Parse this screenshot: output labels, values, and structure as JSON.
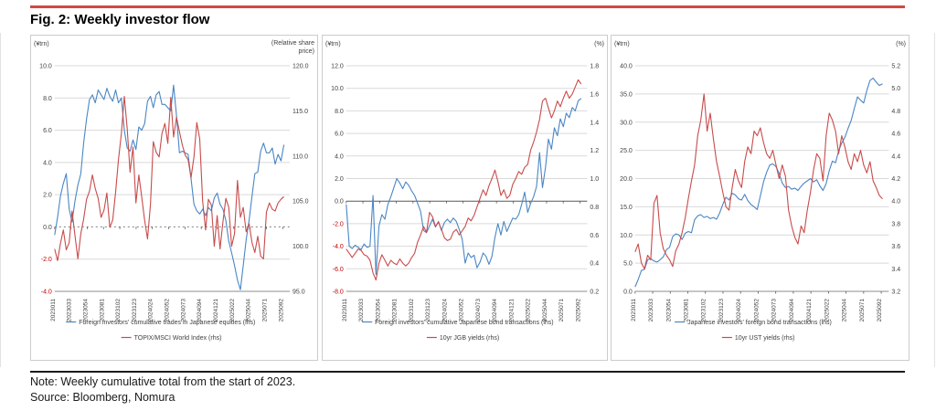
{
  "figure": {
    "title": "Fig. 2: Weekly investor flow",
    "note": "Note: Weekly cumulative total from the start of 2023.",
    "source": "Source: Bloomberg, Nomura"
  },
  "colors": {
    "accent_rule": "#cf4a42",
    "blue": "#4a86c4",
    "red": "#c94b4b",
    "grid": "#d9d9d9",
    "axis": "#8c8c8c",
    "zero": "#595959",
    "tick_text": "#3f3f3f",
    "neg_tick_text": "#c00000"
  },
  "chart_data": [
    {
      "type": "line",
      "left_axis": {
        "unit_lines": [
          "(¥trn)"
        ],
        "min": -4,
        "max": 10,
        "step": 2
      },
      "right_axis": {
        "unit_lines": [
          "(Relative share",
          "price)"
        ],
        "min": 95,
        "max": 120,
        "step": 5
      },
      "zero_line": "dashed",
      "tick_axis": "zero",
      "x_labels": [
        "2023011",
        "2023033",
        "2023054",
        "2023081",
        "2023102",
        "2023123",
        "2024024",
        "2024052",
        "2024073",
        "2024094",
        "2024121",
        "2025022",
        "2025044",
        "2025071",
        "2025092"
      ],
      "series": [
        {
          "name": "Foreign investors' cumulative trades in Japanese equities (lhs)",
          "axis": "left",
          "color": "blue",
          "values": [
            -0.5,
            0.6,
            1.9,
            2.7,
            3.3,
            1.1,
            0.3,
            1.6,
            2.6,
            3.3,
            5.2,
            6.7,
            7.9,
            8.2,
            7.7,
            8.5,
            8.2,
            7.9,
            8.6,
            8.1,
            7.8,
            8.5,
            7.7,
            8.0,
            6.0,
            4.9,
            4.7,
            5.4,
            4.8,
            6.2,
            6.0,
            6.4,
            7.8,
            8.1,
            7.4,
            8.2,
            8.4,
            7.6,
            7.6,
            7.4,
            7.2,
            8.8,
            6.9,
            4.6,
            4.7,
            4.6,
            4.5,
            3.0,
            1.4,
            1.0,
            0.8,
            1.1,
            0.7,
            1.2,
            1.0,
            1.8,
            2.1,
            1.4,
            1.1,
            0.4,
            -0.9,
            -1.6,
            -2.4,
            -3.3,
            -3.9,
            -2.4,
            -0.8,
            0.4,
            1.9,
            3.3,
            3.4,
            4.7,
            5.2,
            4.6,
            4.6,
            4.9,
            3.9,
            4.5,
            4.1,
            5.1
          ]
        },
        {
          "name": "TOPIX/MSCI World Index (rhs)",
          "axis": "right",
          "color": "red",
          "values": [
            99.7,
            98.4,
            100.3,
            101.8,
            99.6,
            100.4,
            103.9,
            101.2,
            98.6,
            101.4,
            103.0,
            105.2,
            106.1,
            107.9,
            106.4,
            105.3,
            103.2,
            104.0,
            105.9,
            102.1,
            102.9,
            106.0,
            109.6,
            112.5,
            116.6,
            113.0,
            108.2,
            111.0,
            104.8,
            107.9,
            105.5,
            102.9,
            100.8,
            104.6,
            111.6,
            110.4,
            109.9,
            112.5,
            113.6,
            111.4,
            116.5,
            112.1,
            114.3,
            112.7,
            111.2,
            110.1,
            109.6,
            107.6,
            109.9,
            113.7,
            111.9,
            105.0,
            101.8,
            105.2,
            104.6,
            100.0,
            103.4,
            99.7,
            102.7,
            105.3,
            104.3,
            100.0,
            101.4,
            107.3,
            103.2,
            104.3,
            101.6,
            102.5,
            100.4,
            99.3,
            101.1,
            98.9,
            98.6,
            103.8,
            104.8,
            104.1,
            103.9,
            104.8,
            105.2,
            105.5
          ]
        }
      ]
    },
    {
      "type": "line",
      "left_axis": {
        "unit_lines": [
          "(¥trn)"
        ],
        "min": -8,
        "max": 12,
        "step": 2
      },
      "right_axis": {
        "unit_lines": [
          "(%)"
        ],
        "min": 0.2,
        "max": 1.8,
        "step": 0.2
      },
      "zero_line": "solid",
      "tick_axis": "zero",
      "x_labels": [
        "2023011",
        "2023033",
        "2023054",
        "2023081",
        "2023102",
        "2023123",
        "2024024",
        "2024052",
        "2024073",
        "2024094",
        "2024121",
        "2025022",
        "2025044",
        "2025071",
        "2025092"
      ],
      "series": [
        {
          "name": "Foreign investors' cumulative Japanese bond transactions (lhs)",
          "axis": "left",
          "color": "blue",
          "values": [
            -0.3,
            -4.0,
            -4.2,
            -3.9,
            -4.1,
            -4.3,
            -3.8,
            -4.1,
            -4.0,
            0.5,
            -6.5,
            -2.2,
            -1.2,
            -1.6,
            -0.3,
            0.4,
            1.2,
            2.0,
            1.6,
            1.1,
            1.7,
            1.4,
            0.9,
            0.5,
            -0.2,
            -0.9,
            -2.6,
            -2.8,
            -2.2,
            -1.6,
            -2.3,
            -1.8,
            -2.6,
            -1.9,
            -1.6,
            -1.9,
            -1.5,
            -1.8,
            -2.5,
            -3.4,
            -5.5,
            -4.6,
            -5.0,
            -4.8,
            -5.9,
            -5.4,
            -4.6,
            -4.9,
            -5.6,
            -4.9,
            -3.2,
            -2.0,
            -3.0,
            -1.8,
            -2.7,
            -2.1,
            -1.5,
            -1.6,
            -1.2,
            -0.3,
            0.8,
            -1.0,
            -0.2,
            0.4,
            1.3,
            4.3,
            1.2,
            3.0,
            5.5,
            4.6,
            6.5,
            5.8,
            7.3,
            6.6,
            7.8,
            7.4,
            8.3,
            8.0,
            8.9,
            9.1
          ]
        },
        {
          "name": "10yr JGB yields (rhs)",
          "axis": "right",
          "color": "red",
          "values": [
            0.5,
            0.47,
            0.44,
            0.47,
            0.5,
            0.49,
            0.46,
            0.45,
            0.42,
            0.33,
            0.28,
            0.4,
            0.46,
            0.42,
            0.38,
            0.42,
            0.4,
            0.39,
            0.43,
            0.4,
            0.38,
            0.4,
            0.44,
            0.47,
            0.55,
            0.6,
            0.66,
            0.62,
            0.76,
            0.73,
            0.66,
            0.69,
            0.64,
            0.58,
            0.56,
            0.57,
            0.62,
            0.64,
            0.6,
            0.63,
            0.66,
            0.72,
            0.7,
            0.74,
            0.8,
            0.86,
            0.92,
            0.88,
            0.95,
            1.0,
            1.06,
            0.98,
            0.88,
            0.92,
            0.86,
            0.88,
            0.96,
            1.0,
            1.05,
            1.03,
            1.08,
            1.1,
            1.2,
            1.26,
            1.33,
            1.42,
            1.55,
            1.57,
            1.5,
            1.43,
            1.48,
            1.55,
            1.51,
            1.57,
            1.62,
            1.57,
            1.6,
            1.65,
            1.7,
            1.67
          ]
        }
      ]
    },
    {
      "type": "line",
      "left_axis": {
        "unit_lines": [
          "(¥trn)"
        ],
        "min": 0,
        "max": 40,
        "step": 5
      },
      "right_axis": {
        "unit_lines": [
          "(%)"
        ],
        "min": 3.2,
        "max": 5.2,
        "step": 0.2
      },
      "zero_line": "none",
      "tick_axis": "bottom",
      "x_labels": [
        "2023011",
        "2023033",
        "2023054",
        "2023081",
        "2023102",
        "2023123",
        "2024024",
        "2024052",
        "2024073",
        "2024094",
        "2024121",
        "2025022",
        "2025044",
        "2025071",
        "2025092"
      ],
      "series": [
        {
          "name": "Japanese investors' foreign bond transactions (lhs)",
          "axis": "left",
          "color": "blue",
          "values": [
            0.8,
            2.1,
            3.7,
            3.9,
            5.6,
            5.8,
            5.4,
            5.2,
            5.6,
            6.1,
            7.4,
            7.8,
            9.7,
            10.2,
            10.0,
            9.2,
            10.3,
            10.6,
            10.4,
            12.7,
            13.4,
            13.6,
            13.1,
            13.3,
            12.9,
            13.1,
            12.8,
            13.9,
            15.4,
            16.7,
            16.2,
            17.4,
            17.1,
            16.4,
            16.2,
            17.2,
            16.1,
            15.4,
            15.0,
            14.5,
            16.9,
            19.4,
            21.1,
            22.4,
            22.6,
            22.1,
            20.9,
            19.2,
            18.4,
            18.6,
            18.1,
            18.3,
            17.9,
            18.6,
            19.2,
            19.6,
            20.0,
            19.4,
            19.8,
            18.7,
            17.9,
            19.1,
            21.4,
            23.1,
            22.8,
            24.9,
            26.3,
            27.3,
            28.9,
            30.3,
            32.4,
            34.5,
            33.9,
            33.4,
            35.6,
            37.4,
            37.8,
            37.1,
            36.5,
            36.8
          ]
        },
        {
          "name": "10yr UST yields (rhs)",
          "axis": "right",
          "color": "red",
          "values": [
            3.55,
            3.62,
            3.45,
            3.4,
            3.52,
            3.48,
            3.98,
            4.05,
            3.72,
            3.58,
            3.52,
            3.48,
            3.42,
            3.56,
            3.62,
            3.72,
            3.85,
            4.02,
            4.18,
            4.32,
            4.58,
            4.72,
            4.95,
            4.62,
            4.78,
            4.55,
            4.35,
            4.22,
            4.08,
            3.95,
            3.92,
            4.12,
            4.28,
            4.18,
            4.12,
            4.35,
            4.48,
            4.42,
            4.62,
            4.58,
            4.65,
            4.52,
            4.42,
            4.38,
            4.45,
            4.32,
            4.2,
            4.32,
            4.22,
            3.92,
            3.78,
            3.68,
            3.62,
            3.78,
            3.72,
            3.92,
            4.08,
            4.28,
            4.42,
            4.38,
            4.18,
            4.58,
            4.78,
            4.72,
            4.62,
            4.42,
            4.58,
            4.48,
            4.35,
            4.28,
            4.42,
            4.35,
            4.45,
            4.32,
            4.25,
            4.35,
            4.18,
            4.12,
            4.05,
            4.02
          ]
        }
      ]
    }
  ]
}
